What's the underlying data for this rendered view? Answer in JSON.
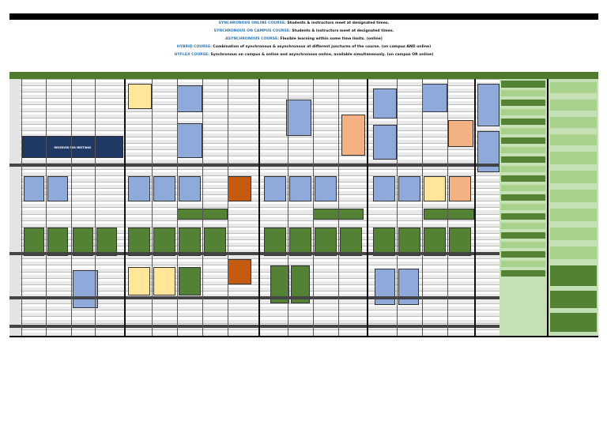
{
  "legend": {
    "lines": [
      {
        "key": "SYNCHRONOUS ONLINE COURSE:",
        "text": "Students & instructors meet at designated times.",
        "color": "#2e75b6"
      },
      {
        "key": "SYNCHRONOUS ON CAMPUS COURSE:",
        "text": "Students & instructors meet at designated times.",
        "color": "#2e75b6"
      },
      {
        "key": "ASYNCHRONOUS COURSE:",
        "text": "Flexible learning within some time limits. (online)",
        "color": "#2e75b6"
      },
      {
        "key": "HYBRID COURSE:",
        "text": "Combination of synchronous & asynchronous at different junctures of the course. (on campus AND online)",
        "color": "#2e75b6"
      },
      {
        "key": "HYFLEX COURSE:",
        "text": "Synchronous on campus & online and asynchronous online, available simultaneously. (on campus OR online)",
        "color": "#2e75b6"
      }
    ]
  },
  "colors": {
    "online": "#8eaadb",
    "campus": "#ffe699",
    "hybrid": "#f4b183",
    "hyflex": "#548235",
    "reserved": "#1f3864",
    "band": "#4f7a2c"
  },
  "grid": {
    "reserved_label": "RESERVED FOR MEETINGS"
  }
}
